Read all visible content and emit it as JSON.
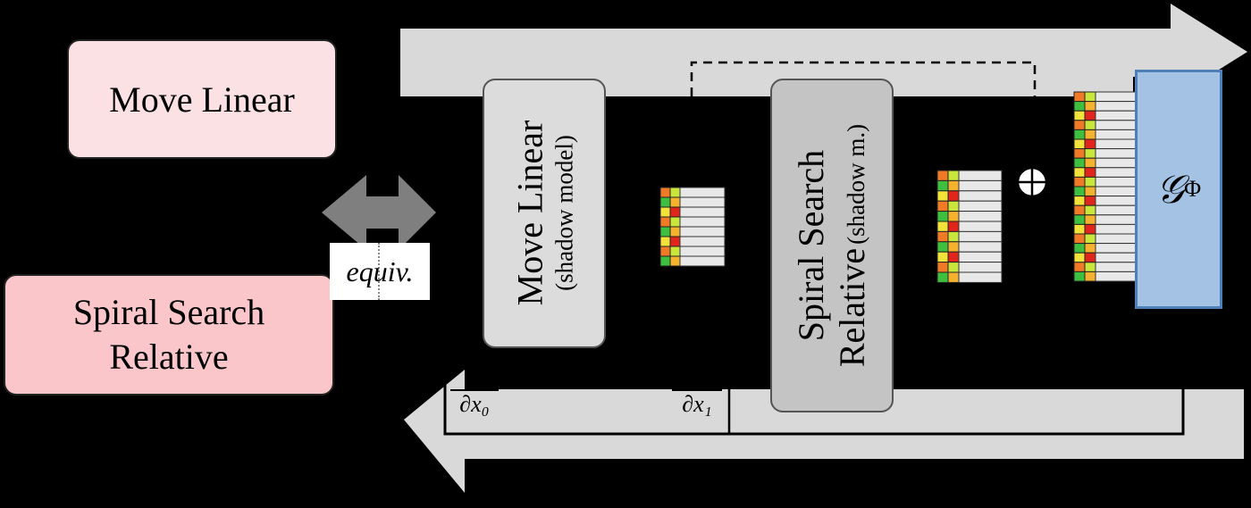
{
  "blocks": {
    "move_linear": "Move Linear",
    "spiral_search_line1": "Spiral Search",
    "spiral_search_line2": "Relative",
    "equiv": "equiv."
  },
  "shadow_models": {
    "move_linear_title": "Move Linear",
    "move_linear_sub": "(shadow model)",
    "spiral_title_line1": "Spiral Search",
    "spiral_title_line2": "Relative",
    "spiral_sub": "(shadow m.)"
  },
  "gradients": {
    "grad0_den": "∂x₀",
    "grad1_den": "∂x₁"
  },
  "outputs": {
    "g_symbol": "𝒢",
    "g_subscript": "Φ"
  },
  "colors": {
    "forward_arrow": "#d9d9d9",
    "backward_arrow": "#d9d9d9",
    "g_fill": "#a4c2e4",
    "g_border": "#4e7fb6",
    "pink_light": "#fbe1e3",
    "pink": "#fbc6ca"
  }
}
